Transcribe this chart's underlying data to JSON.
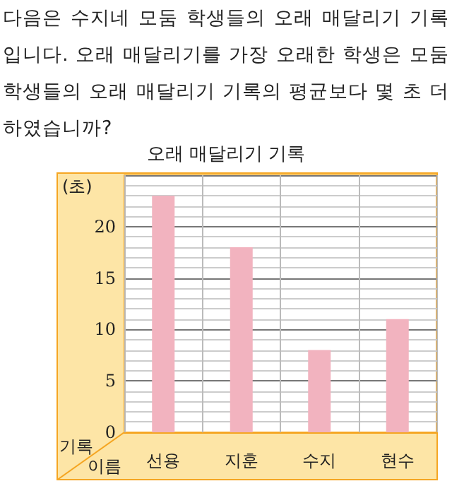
{
  "chart_data": {
    "type": "bar",
    "subtitle": "다음은 수지네 모둠 학생들의 오래 매달리기 기록입니다. 오래 매달리기를 가장 오래한 학생은 모둠 학생들의 오래 매달리기 기록의 평균보다 몇 초 더 하였습니까?",
    "title": "오래 매달리기 기록",
    "ylabel": "(초)",
    "xlabel": "이름",
    "annotations": [
      "기록"
    ],
    "categories": [
      "선용",
      "지훈",
      "수지",
      "현수"
    ],
    "values": [
      23,
      18,
      8,
      11
    ],
    "color": "#f2b3bf",
    "ylim": [
      0,
      25
    ],
    "yticks": [
      0,
      5,
      10,
      15,
      20
    ],
    "grid": true
  }
}
